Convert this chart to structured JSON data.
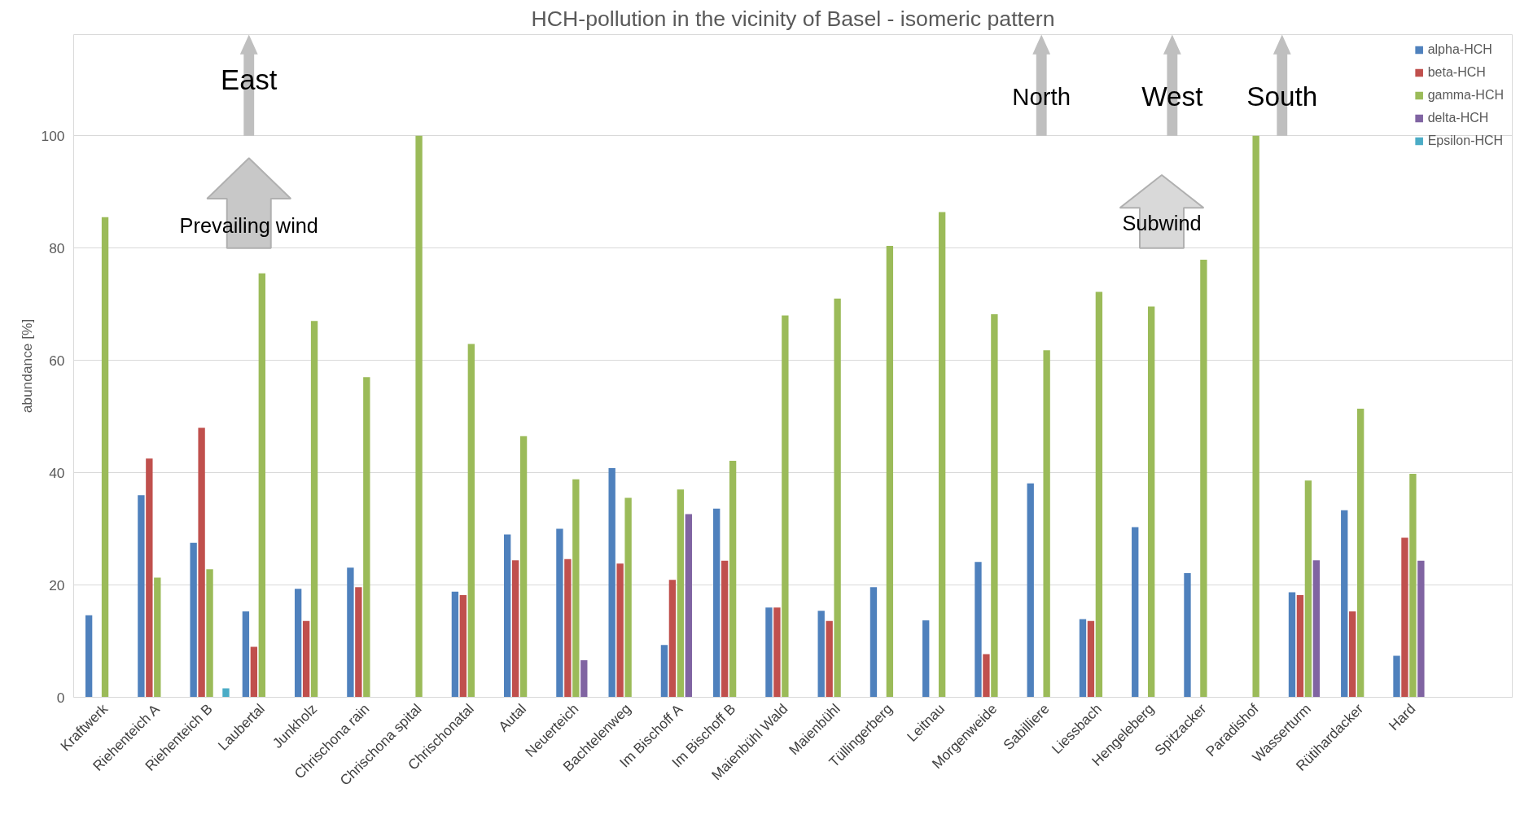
{
  "chart_data": {
    "type": "bar",
    "title": "HCH-pollution in the vicinity of Basel - isomeric pattern",
    "ylabel": "abundance [%]",
    "categories": [
      "Kraftwerk",
      "Riehenteich A",
      "Riehenteich B",
      "Laubertal",
      "Junkholz",
      "Chrischona rain",
      "Chrischona spital",
      "Chrischonatal",
      "Autal",
      "Neuerteich",
      "Bachtelenweg",
      "Im Bischoff A",
      "Im Bischoff B",
      "Maienbühl Wald",
      "Maienbühl",
      "Tüllingerberg",
      "Leitnau",
      "Morgenweide",
      "Sabilliere",
      "Liessbach",
      "Hengeleberg",
      "Spitzacker",
      "Paradishof",
      "Wasserturm",
      "Rütihardacker",
      "Hard"
    ],
    "series": [
      {
        "name": "alpha-HCH",
        "color": "#4f81bd",
        "values": [
          14.6,
          36,
          27.5,
          15.3,
          19.3,
          23.1,
          null,
          18.8,
          29,
          30,
          40.8,
          9.3,
          33.6,
          16,
          15.4,
          19.6,
          13.7,
          24.1,
          38.1,
          13.9,
          30.3,
          22.1,
          null,
          18.7,
          33.3,
          7.4
        ]
      },
      {
        "name": "beta-HCH",
        "color": "#c0504d",
        "values": [
          null,
          42.5,
          48,
          9,
          13.6,
          19.6,
          null,
          18.2,
          24.4,
          24.6,
          23.8,
          20.9,
          24.3,
          16,
          13.6,
          null,
          null,
          7.7,
          null,
          13.6,
          null,
          null,
          null,
          18.2,
          15.3,
          28.4
        ]
      },
      {
        "name": "gamma-HCH",
        "color": "#9bbb59",
        "values": [
          85.5,
          21.3,
          22.8,
          75.5,
          67,
          57,
          100,
          62.9,
          46.5,
          38.8,
          35.5,
          37,
          42.1,
          68,
          71,
          80.4,
          86.4,
          68.2,
          61.8,
          72.2,
          69.6,
          77.9,
          100,
          38.6,
          51.4,
          39.8
        ]
      },
      {
        "name": "delta-HCH",
        "color": "#8064a2",
        "values": [
          null,
          null,
          null,
          null,
          null,
          null,
          null,
          null,
          null,
          6.6,
          null,
          32.6,
          null,
          null,
          null,
          null,
          null,
          null,
          null,
          null,
          null,
          null,
          null,
          24.4,
          null,
          24.3
        ]
      },
      {
        "name": "Epsilon-HCH",
        "color": "#4bacc6",
        "values": [
          null,
          null,
          1.6,
          null,
          null,
          null,
          null,
          null,
          null,
          null,
          null,
          null,
          null,
          null,
          null,
          null,
          null,
          null,
          null,
          null,
          null,
          null,
          null,
          null,
          null,
          null
        ]
      }
    ],
    "ylim": [
      0,
      118
    ],
    "yticks": [
      0,
      20,
      40,
      60,
      80,
      100
    ],
    "grid": "y",
    "legend": "top right",
    "annotations": [
      "East",
      "Prevailing wind",
      "North",
      "West",
      "South",
      "Subwind"
    ]
  }
}
